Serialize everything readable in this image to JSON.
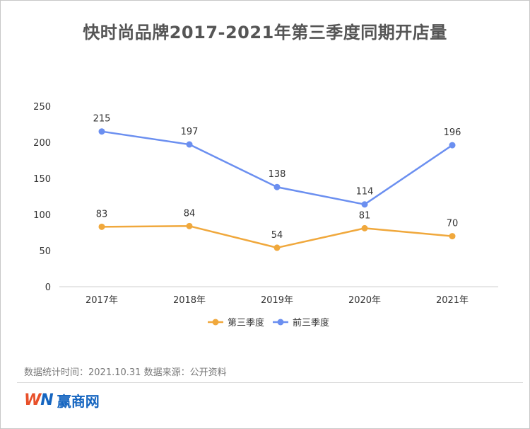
{
  "chart_data": {
    "type": "line",
    "title": "快时尚品牌2017-2021年第三季度同期开店量",
    "categories": [
      "2017年",
      "2018年",
      "2019年",
      "2020年",
      "2021年"
    ],
    "series": [
      {
        "name": "第三季度",
        "values": [
          83,
          84,
          54,
          81,
          70
        ],
        "color": "#f0a83c"
      },
      {
        "name": "前三季度",
        "values": [
          215,
          197,
          138,
          114,
          196
        ],
        "color": "#6b8ff0"
      }
    ],
    "y_ticks": [
      0,
      50,
      100,
      150,
      200,
      250
    ],
    "ylim": [
      0,
      250
    ],
    "xlabel": "",
    "ylabel": "",
    "grid": false,
    "legend_position": "bottom"
  },
  "footer": {
    "note": "数据统计时间：2021.10.31   数据来源：公开资料"
  },
  "logo": {
    "mark_w": "W",
    "mark_n": "N",
    "text": "赢商网"
  }
}
